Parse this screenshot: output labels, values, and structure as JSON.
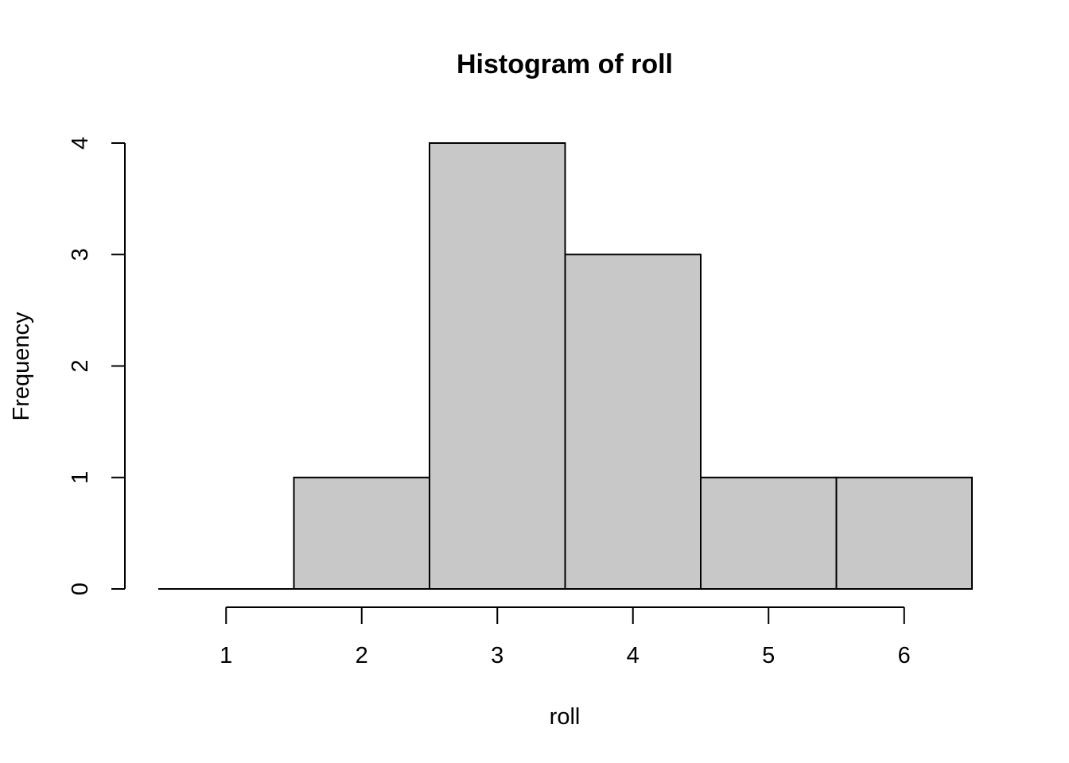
{
  "chart_data": {
    "type": "bar",
    "title": "Histogram of roll",
    "xlabel": "roll",
    "ylabel": "Frequency",
    "bins": [
      {
        "from": 0.5,
        "to": 1.5,
        "count": 0
      },
      {
        "from": 1.5,
        "to": 2.5,
        "count": 1
      },
      {
        "from": 2.5,
        "to": 3.5,
        "count": 4
      },
      {
        "from": 3.5,
        "to": 4.5,
        "count": 3
      },
      {
        "from": 4.5,
        "to": 5.5,
        "count": 1
      },
      {
        "from": 5.5,
        "to": 6.5,
        "count": 1
      }
    ],
    "xticks": [
      1,
      2,
      3,
      4,
      5,
      6
    ],
    "yticks": [
      0,
      1,
      2,
      3,
      4
    ],
    "xlim": [
      0.5,
      6.5
    ],
    "ylim": [
      0,
      4
    ],
    "grid": false,
    "colors": {
      "fill": "#c8c8c8",
      "stroke": "#000000"
    }
  }
}
